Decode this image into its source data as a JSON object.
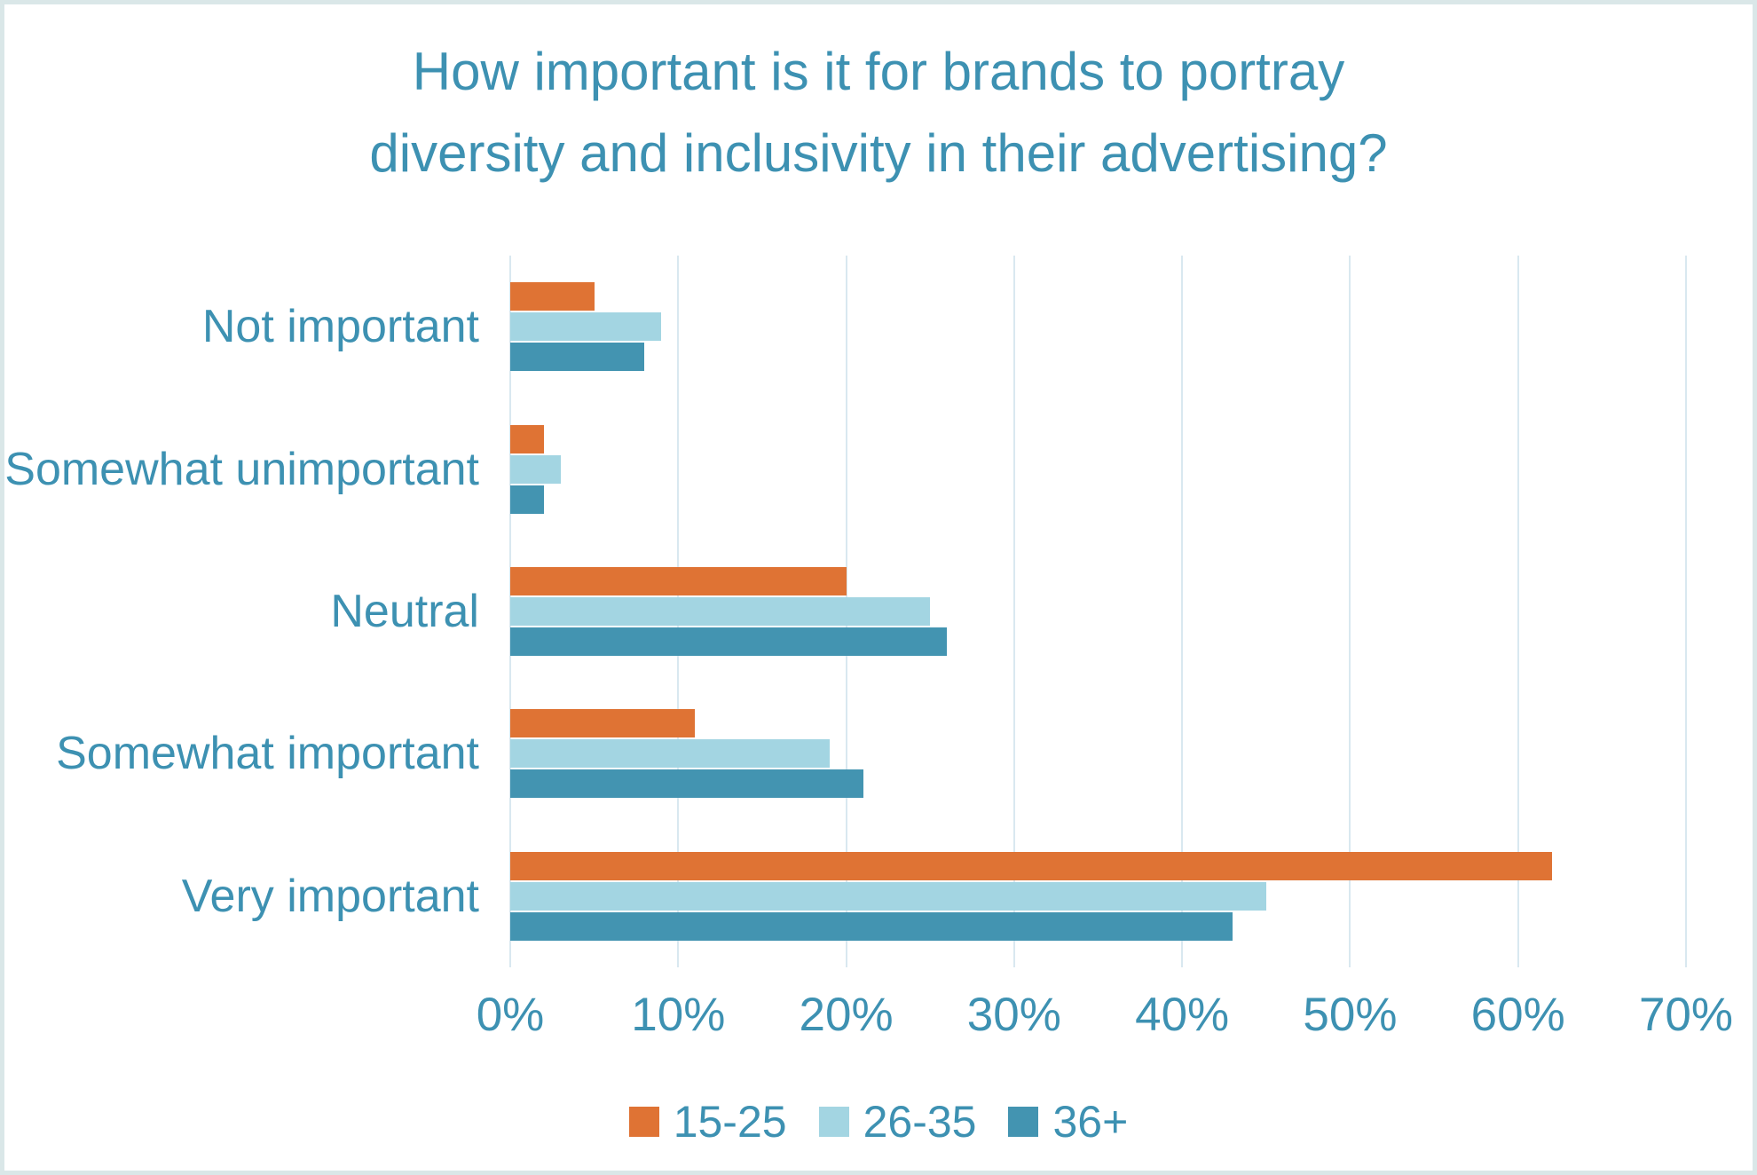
{
  "chart_data": {
    "type": "bar",
    "orientation": "horizontal",
    "title": "How important is it for brands to portray diversity and inclusivity in their advertising?",
    "title_lines": [
      "How important is it for brands to portray",
      "diversity and inclusivity in their advertising?"
    ],
    "categories": [
      "Not important",
      "Somewhat unimportant",
      "Neutral",
      "Somewhat important",
      "Very important"
    ],
    "series": [
      {
        "name": "15-25",
        "color": "#DF7334",
        "values": [
          5,
          2,
          20,
          11,
          62
        ]
      },
      {
        "name": "26-35",
        "color": "#A3D5E2",
        "values": [
          9,
          3,
          25,
          19,
          45
        ]
      },
      {
        "name": "36+",
        "color": "#4394B1",
        "values": [
          8,
          2,
          26,
          21,
          43
        ]
      }
    ],
    "x_ticks": [
      "0%",
      "10%",
      "20%",
      "30%",
      "40%",
      "50%",
      "60%",
      "70%"
    ],
    "xlim": [
      0,
      70
    ],
    "value_unit": "%",
    "grid": "vertical",
    "legend_position": "bottom",
    "xlabel": "",
    "ylabel": ""
  },
  "colors": {
    "title_text": "#3D91B2",
    "axis_text": "#3D91B2",
    "gridline": "#D9E8F0",
    "canvas_border": "#DAE7E8",
    "background": "#FFFFFF"
  }
}
